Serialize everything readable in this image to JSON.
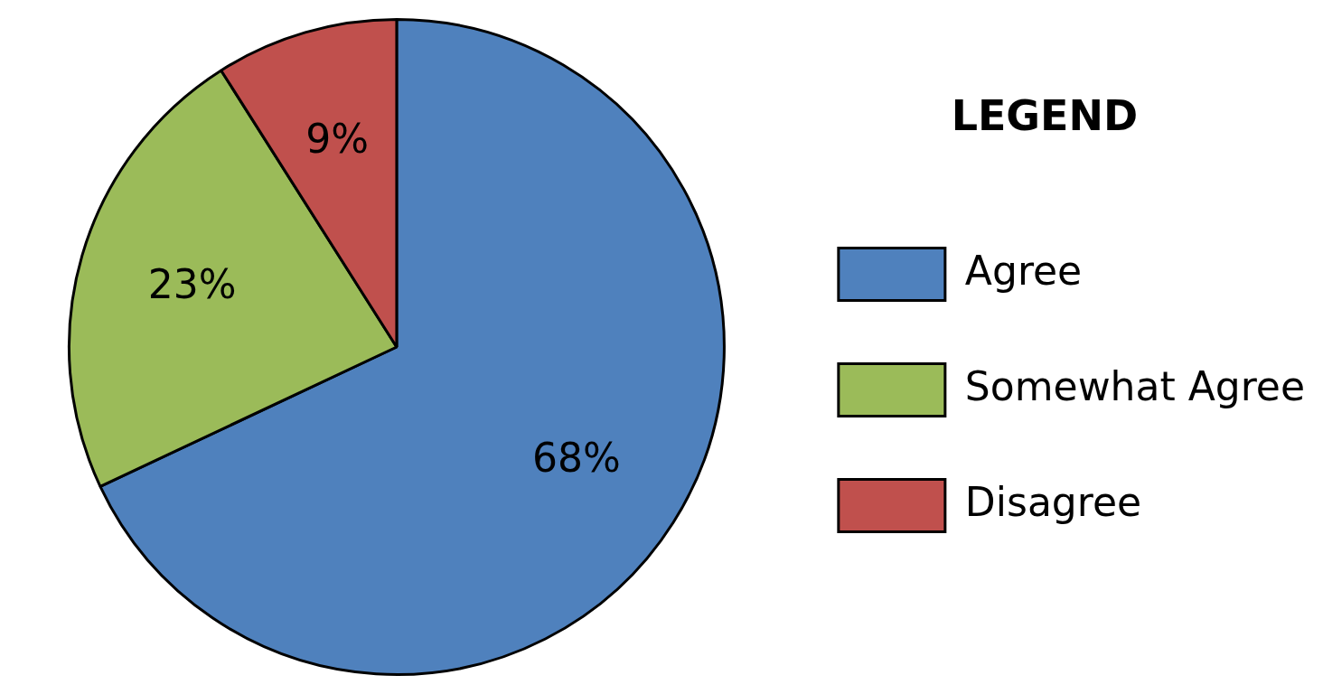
{
  "chart_data": {
    "type": "pie",
    "legend_title": "LEGEND",
    "legend": "right",
    "categories": [
      "Agree",
      "Somewhat Agree",
      "Disagree"
    ],
    "values": [
      68,
      23,
      9
    ],
    "colors": [
      "#4f81bd",
      "#9bbb59",
      "#c0504d"
    ],
    "value_labels": [
      "68%",
      "23%",
      "9%"
    ]
  }
}
